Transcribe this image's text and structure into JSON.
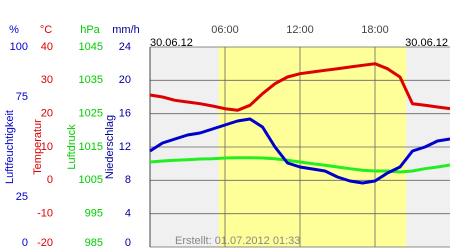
{
  "chart_data": {
    "type": "line",
    "date_left": "30.06.12",
    "date_right": "30.06.12",
    "footer": "Erstellt: 01.07.2012 01:33",
    "xlim": [
      0,
      24
    ],
    "xticks": [
      {
        "value": 6,
        "label": "06:00"
      },
      {
        "value": 12,
        "label": "12:00"
      },
      {
        "value": 18,
        "label": "18:00"
      }
    ],
    "daylight": [
      5.5,
      20.5
    ],
    "x": [
      0,
      1,
      2,
      3,
      4,
      5,
      6,
      7,
      8,
      9,
      10,
      11,
      12,
      13,
      14,
      15,
      16,
      17,
      18,
      19,
      20,
      21,
      22,
      23,
      24
    ],
    "axes": [
      {
        "unit": "%",
        "label": "Luftfeuchtigkeit",
        "color": "#0000cc",
        "ylim": [
          0,
          100
        ],
        "yticks": [
          0,
          25,
          75,
          100
        ]
      },
      {
        "unit": "°C",
        "label": "Temperatur",
        "color": "#dd0000",
        "ylim": [
          -20,
          40
        ],
        "yticks": [
          -20,
          -10,
          0,
          10,
          20,
          30,
          40
        ],
        "grid": true
      },
      {
        "unit": "hPa",
        "label": "Luftdruck",
        "color": "#00cc00",
        "ylim": [
          985,
          1045
        ],
        "yticks": [
          985,
          995,
          1005,
          1015,
          1025,
          1035,
          1045
        ]
      },
      {
        "unit": "mm/h",
        "label": "Niederschlag",
        "color": "#000099",
        "ylim": [
          0,
          24
        ],
        "yticks": [
          0,
          4,
          8,
          12,
          16,
          20,
          24
        ]
      }
    ],
    "series": [
      {
        "name": "Luftdruck",
        "axis": 2,
        "color": "#22ee22",
        "values": [
          1010.5,
          1010.8,
          1011,
          1011.2,
          1011.4,
          1011.5,
          1011.7,
          1011.8,
          1011.8,
          1011.7,
          1011.5,
          1011,
          1010.5,
          1010,
          1009.5,
          1009,
          1008.5,
          1008,
          1007.8,
          1007.8,
          1007.5,
          1007.8,
          1008.5,
          1009,
          1009.6
        ]
      },
      {
        "name": "Temperatur",
        "axis": 1,
        "color": "#dd0000",
        "values": [
          25.6,
          25,
          24,
          23.5,
          23,
          22.3,
          21.5,
          21,
          22.5,
          26,
          29,
          31,
          32,
          32.5,
          33,
          33.5,
          34,
          34.5,
          35,
          33.5,
          31,
          23,
          22.5,
          22,
          21.5
        ]
      },
      {
        "name": "Luftfeuchtigkeit",
        "axis": 0,
        "color": "#0000cc",
        "values": [
          48,
          52,
          54,
          56,
          57,
          59,
          61,
          63,
          64,
          60,
          50,
          42,
          40,
          39,
          38,
          35,
          33,
          32,
          33,
          37,
          40,
          48,
          50,
          53,
          54
        ]
      }
    ]
  }
}
